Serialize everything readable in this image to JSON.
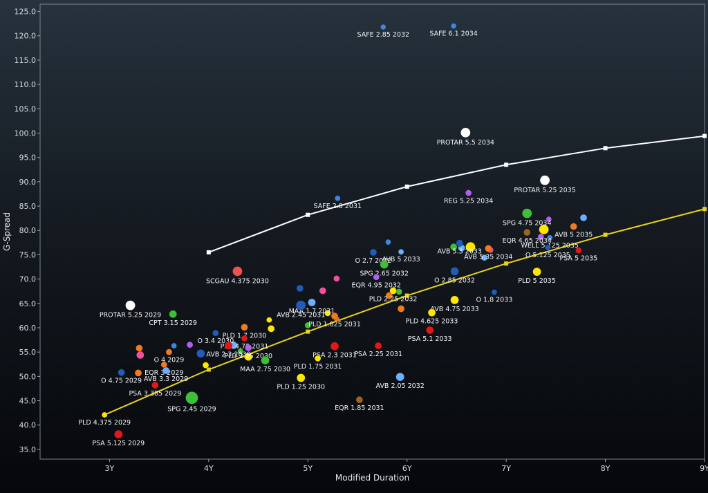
{
  "chart_data": {
    "type": "scatter",
    "title": "",
    "xlabel": "Modified Duration",
    "ylabel": "G-Spread",
    "xlim": [
      2.3,
      9.0
    ],
    "ylim": [
      33.0,
      126.5
    ],
    "grid": false,
    "x_ticks": [
      {
        "v": 3,
        "label": "3Y"
      },
      {
        "v": 4,
        "label": "4Y"
      },
      {
        "v": 5,
        "label": "5Y"
      },
      {
        "v": 6,
        "label": "6Y"
      },
      {
        "v": 7,
        "label": "7Y"
      },
      {
        "v": 8,
        "label": "8Y"
      },
      {
        "v": 9,
        "label": "9Y"
      }
    ],
    "y_ticks": [
      {
        "v": 35,
        "label": "35.0"
      },
      {
        "v": 40,
        "label": "40.0"
      },
      {
        "v": 45,
        "label": "45.0"
      },
      {
        "v": 50,
        "label": "50.0"
      },
      {
        "v": 55,
        "label": "55.0"
      },
      {
        "v": 60,
        "label": "60.0"
      },
      {
        "v": 65,
        "label": "65.0"
      },
      {
        "v": 70,
        "label": "70.0"
      },
      {
        "v": 75,
        "label": "75.0"
      },
      {
        "v": 80,
        "label": "80.0"
      },
      {
        "v": 85,
        "label": "85.0"
      },
      {
        "v": 90,
        "label": "90.0"
      },
      {
        "v": 95,
        "label": "95.0"
      },
      {
        "v": 100,
        "label": "100.0"
      },
      {
        "v": 105,
        "label": "105.0"
      },
      {
        "v": 110,
        "label": "110.0"
      },
      {
        "v": 115,
        "label": "115.0"
      },
      {
        "v": 120,
        "label": "120.0"
      },
      {
        "v": 125,
        "label": "125.0"
      }
    ],
    "curves": [
      {
        "color": "#ffffff",
        "x": [
          4.0,
          5.0,
          6.0,
          7.0,
          8.0,
          9.0
        ],
        "y": [
          75.5,
          83.2,
          89.0,
          93.5,
          96.9,
          99.4
        ]
      },
      {
        "color": "#e8d21a",
        "x": [
          2.95,
          4.0,
          5.0,
          6.0,
          7.0,
          8.0,
          9.0
        ],
        "y": [
          42.1,
          51.4,
          59.2,
          66.6,
          73.2,
          79.1,
          84.4
        ]
      }
    ],
    "points": [
      {
        "label": "SAFE 2.85 2032",
        "x": 5.76,
        "y": 121.8,
        "color": "#3f86d9",
        "r": 4
      },
      {
        "label": "SAFE 6.1 2034",
        "x": 6.47,
        "y": 122.0,
        "color": "#3f86d9",
        "r": 4
      },
      {
        "label": "PROTAR 5.5 2034",
        "x": 6.59,
        "y": 100.1,
        "color": "#ffffff",
        "r": 7
      },
      {
        "label": "PROTAR 5.25 2035",
        "x": 7.39,
        "y": 90.3,
        "color": "#ffffff",
        "r": 7
      },
      {
        "label": "SAFE 2.8 2031",
        "x": 5.3,
        "y": 86.6,
        "color": "#3f86d9",
        "r": 4
      },
      {
        "label": "REG 5.25 2034",
        "x": 6.62,
        "y": 87.7,
        "color": "#b060f0",
        "r": 4.5
      },
      {
        "label": "SPG 4.75 2034",
        "x": 7.21,
        "y": 83.5,
        "color": "#3fbe3a",
        "r": 7
      },
      {
        "label": "AVB 5 2035",
        "x": 7.68,
        "y": 80.8,
        "color": "#f07a20",
        "r": 5
      },
      {
        "label": "WELL 5.125 2035",
        "x": 7.44,
        "y": 78.5,
        "color": "#3f86d9",
        "r": 4
      },
      {
        "label": "EQR 4.65 2034",
        "x": 7.21,
        "y": 79.6,
        "color": "#9a6520",
        "r": 5
      },
      {
        "label": "O 5.125 2035",
        "x": 7.42,
        "y": 76.5,
        "color": "#1f5db8",
        "r": 4
      },
      {
        "label": "PSA 5 2035",
        "x": 7.73,
        "y": 75.9,
        "color": "#e01818",
        "r": 4.5
      },
      {
        "label": "PLD 5 2035",
        "x": 7.31,
        "y": 71.5,
        "color": "#ffe600",
        "r": 6
      },
      {
        "label": "AVB 5.35 2034",
        "x": 6.82,
        "y": 76.3,
        "color": "#f07a20",
        "r": 5
      },
      {
        "label": "AVB 5.3 2033",
        "x": 6.53,
        "y": 77.4,
        "color": "#1f5db8",
        "r": 5
      },
      {
        "label": "O 2.85 2032",
        "x": 6.48,
        "y": 71.6,
        "color": "#1f5db8",
        "r": 6
      },
      {
        "label": "O 1.8 2033",
        "x": 6.88,
        "y": 67.3,
        "color": "#1f5db8",
        "r": 4
      },
      {
        "label": "O 2.7 2032",
        "x": 5.66,
        "y": 75.5,
        "color": "#1f5db8",
        "r": 5
      },
      {
        "label": "AVB 5 2033",
        "x": 5.94,
        "y": 75.6,
        "color": "#6ab0ff",
        "r": 4
      },
      {
        "label": "SPG 2.65 2032",
        "x": 5.77,
        "y": 73.0,
        "color": "#3fbe3a",
        "r": 6
      },
      {
        "label": "EQR 4.95 2032",
        "x": 5.69,
        "y": 70.4,
        "color": "#b060f0",
        "r": 4.5
      },
      {
        "label": "PLD 2.25 2032",
        "x": 5.86,
        "y": 67.6,
        "color": "#ffe600",
        "r": 5
      },
      {
        "label": "AVB 4.75 2033",
        "x": 6.48,
        "y": 65.7,
        "color": "#ffe600",
        "r": 6
      },
      {
        "label": "PLD 4.625 2033",
        "x": 6.25,
        "y": 63.1,
        "color": "#ffe600",
        "r": 5.5
      },
      {
        "label": "PSA 5.1 2033",
        "x": 6.23,
        "y": 59.5,
        "color": "#e01818",
        "r": 5.5
      },
      {
        "label": "SCGAU 4.375 2030",
        "x": 4.29,
        "y": 71.6,
        "color": "#f05050",
        "r": 7
      },
      {
        "label": "MAA 1.7 2031",
        "x": 5.04,
        "y": 65.2,
        "color": "#6ab0ff",
        "r": 5.5
      },
      {
        "label": "AVB 2.45 2031",
        "x": 4.93,
        "y": 64.6,
        "color": "#1f5db8",
        "r": 7
      },
      {
        "label": "PLD 1.625 2031",
        "x": 5.27,
        "y": 62.4,
        "color": "#f07a20",
        "r": 5
      },
      {
        "label": "PLD 1.7 2030",
        "x": 4.36,
        "y": 60.1,
        "color": "#f07a20",
        "r": 5
      },
      {
        "label": "PLD 4.75 2031",
        "x": 4.36,
        "y": 57.8,
        "color": "#e01818",
        "r": 4.5
      },
      {
        "label": "O 3.4 2030",
        "x": 4.07,
        "y": 58.9,
        "color": "#1f5db8",
        "r": 4.5
      },
      {
        "label": "AVB 2.3 2030",
        "x": 4.2,
        "y": 56.3,
        "color": "#e01818",
        "r": 5.5
      },
      {
        "label": "PLD 2.25 2030",
        "x": 4.4,
        "y": 55.9,
        "color": "#b060f0",
        "r": 5
      },
      {
        "label": "MAA 2.75 2030",
        "x": 4.57,
        "y": 53.3,
        "color": "#3fbe3a",
        "r": 6
      },
      {
        "label": "PSA 2.3 2031",
        "x": 5.27,
        "y": 56.2,
        "color": "#e01818",
        "r": 6
      },
      {
        "label": "PSA 2.25 2031",
        "x": 5.71,
        "y": 56.3,
        "color": "#e01818",
        "r": 5
      },
      {
        "label": "PLD 1.75 2031",
        "x": 5.1,
        "y": 53.7,
        "color": "#ffe600",
        "r": 4.5
      },
      {
        "label": "PLD 1.25 2030",
        "x": 4.93,
        "y": 49.7,
        "color": "#ffe600",
        "r": 6
      },
      {
        "label": "AVB 2.05 2032",
        "x": 5.93,
        "y": 49.9,
        "color": "#6ab0ff",
        "r": 6
      },
      {
        "label": "EQR 1.85 2031",
        "x": 5.52,
        "y": 45.2,
        "color": "#9a6520",
        "r": 5
      },
      {
        "label": "PROTAR 5.25 2029",
        "x": 3.21,
        "y": 64.6,
        "color": "#ffffff",
        "r": 7
      },
      {
        "label": "CPT 3.15 2029",
        "x": 3.64,
        "y": 62.8,
        "color": "#3fbe3a",
        "r": 5.5
      },
      {
        "label": "O 4 2029",
        "x": 3.6,
        "y": 55.0,
        "color": "#f07a20",
        "r": 4.5
      },
      {
        "label": "EQR 3 2029",
        "x": 3.55,
        "y": 52.4,
        "color": "#f07a20",
        "r": 4.5
      },
      {
        "label": "O 4.75 2029",
        "x": 3.12,
        "y": 50.8,
        "color": "#1f5db8",
        "r": 5
      },
      {
        "label": "AVB 3.3 2029",
        "x": 3.57,
        "y": 51.2,
        "color": "#6ab0ff",
        "r": 5
      },
      {
        "label": "PSA 3.385 2029",
        "x": 3.46,
        "y": 48.2,
        "color": "#e01818",
        "r": 5
      },
      {
        "label": "SPG 2.45 2029",
        "x": 3.83,
        "y": 45.6,
        "color": "#3fbe3a",
        "r": 9
      },
      {
        "label": "PLD 4.375 2029",
        "x": 2.95,
        "y": 42.1,
        "color": "#ffe600",
        "r": 4
      },
      {
        "label": "PSA 5.125 2029",
        "x": 3.09,
        "y": 38.1,
        "color": "#e01818",
        "r": 6
      }
    ],
    "extra_points": [
      {
        "x": 3.3,
        "y": 55.8,
        "color": "#f07a20",
        "r": 5
      },
      {
        "x": 3.31,
        "y": 54.4,
        "color": "#f050a0",
        "r": 5.5
      },
      {
        "x": 3.29,
        "y": 50.7,
        "color": "#f07a20",
        "r": 5
      },
      {
        "x": 3.65,
        "y": 56.3,
        "color": "#3f86d9",
        "r": 4
      },
      {
        "x": 3.81,
        "y": 56.5,
        "color": "#b060f0",
        "r": 4.5
      },
      {
        "x": 3.92,
        "y": 54.7,
        "color": "#1f5db8",
        "r": 6
      },
      {
        "x": 3.97,
        "y": 52.3,
        "color": "#ffe600",
        "r": 4.5
      },
      {
        "x": 4.25,
        "y": 56.4,
        "color": "#6ab0ff",
        "r": 5.5
      },
      {
        "x": 4.32,
        "y": 55.2,
        "color": "#3fbe3a",
        "r": 4
      },
      {
        "x": 4.4,
        "y": 54.0,
        "color": "#ffe600",
        "r": 5.5
      },
      {
        "x": 4.63,
        "y": 59.8,
        "color": "#ffe600",
        "r": 5
      },
      {
        "x": 4.61,
        "y": 61.6,
        "color": "#ffe600",
        "r": 4
      },
      {
        "x": 4.92,
        "y": 68.1,
        "color": "#1f5db8",
        "r": 5
      },
      {
        "x": 5.15,
        "y": 67.6,
        "color": "#f050a0",
        "r": 5
      },
      {
        "x": 5.29,
        "y": 70.1,
        "color": "#f050a0",
        "r": 4.5
      },
      {
        "x": 5.0,
        "y": 60.5,
        "color": "#3fbe3a",
        "r": 4.5
      },
      {
        "x": 5.2,
        "y": 63.0,
        "color": "#ffe600",
        "r": 4.5
      },
      {
        "x": 5.29,
        "y": 61.8,
        "color": "#f07a20",
        "r": 4
      },
      {
        "x": 5.82,
        "y": 66.6,
        "color": "#f07a20",
        "r": 5
      },
      {
        "x": 5.92,
        "y": 67.4,
        "color": "#3fbe3a",
        "r": 4.5
      },
      {
        "x": 5.94,
        "y": 63.9,
        "color": "#f07a20",
        "r": 5
      },
      {
        "x": 5.81,
        "y": 77.6,
        "color": "#3f86d9",
        "r": 4
      },
      {
        "x": 6.47,
        "y": 76.6,
        "color": "#3fbe3a",
        "r": 5
      },
      {
        "x": 6.55,
        "y": 76.4,
        "color": "#6ab0ff",
        "r": 5
      },
      {
        "x": 6.64,
        "y": 76.6,
        "color": "#ffe600",
        "r": 7
      },
      {
        "x": 6.78,
        "y": 74.4,
        "color": "#6ab0ff",
        "r": 4.5
      },
      {
        "x": 6.84,
        "y": 76.0,
        "color": "#f050a0",
        "r": 4.5
      },
      {
        "x": 7.35,
        "y": 78.7,
        "color": "#b060f0",
        "r": 4.5
      },
      {
        "x": 7.38,
        "y": 80.2,
        "color": "#ffe600",
        "r": 7
      },
      {
        "x": 7.43,
        "y": 82.3,
        "color": "#b060f0",
        "r": 4
      },
      {
        "x": 7.78,
        "y": 82.6,
        "color": "#6ab0ff",
        "r": 5
      }
    ]
  }
}
